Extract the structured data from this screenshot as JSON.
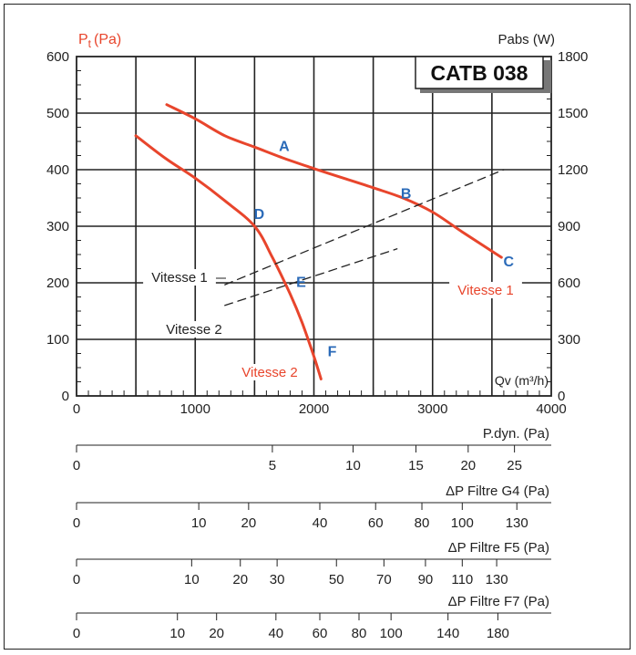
{
  "chart_data": {
    "type": "line",
    "model_label": "CATB 038",
    "ylabel_left_main": "P",
    "ylabel_left_sub": "t",
    "ylabel_left_unit": "(Pa)",
    "ylabel_right": "Pabs (W)",
    "xlabel": "Qv (m³/h)",
    "xlim": [
      0,
      4000
    ],
    "ylim": [
      0,
      600
    ],
    "y2lim": [
      0,
      1800
    ],
    "grid": true,
    "x_ticks": [
      0,
      1000,
      2000,
      3000,
      4000
    ],
    "y_ticks": [
      0,
      100,
      200,
      300,
      400,
      500,
      600
    ],
    "y2_ticks": [
      0,
      300,
      600,
      900,
      1200,
      1500,
      1800
    ],
    "series": [
      {
        "name": "Vitesse 1",
        "axis": "pressure",
        "style": "solid",
        "color": "#e8452c",
        "x": [
          760,
          1000,
          1250,
          1500,
          1750,
          2000,
          2250,
          2500,
          2750,
          3000,
          3250,
          3580
        ],
        "y": [
          515,
          490,
          460,
          440,
          420,
          402,
          385,
          368,
          350,
          325,
          290,
          245
        ]
      },
      {
        "name": "Vitesse 2",
        "axis": "pressure",
        "style": "solid",
        "color": "#e8452c",
        "x": [
          500,
          750,
          1000,
          1250,
          1500,
          1650,
          1800,
          1900,
          2000,
          2060
        ],
        "y": [
          460,
          420,
          385,
          345,
          300,
          245,
          180,
          130,
          70,
          30
        ]
      },
      {
        "name": "Vitesse 1",
        "axis": "power",
        "style": "dashed",
        "color": "#222222",
        "x": [
          1250,
          3600
        ],
        "y": [
          590,
          1200
        ]
      },
      {
        "name": "Vitesse 2",
        "axis": "power",
        "style": "dashed",
        "color": "#222222",
        "x": [
          1250,
          2700
        ],
        "y": [
          480,
          780
        ]
      }
    ],
    "curve_labels": [
      {
        "text": "Vitesse 1",
        "color": "#e8452c"
      },
      {
        "text": "Vitesse 2",
        "color": "#e8452c"
      },
      {
        "text": "Vitesse 1",
        "color": "#222222"
      },
      {
        "text": "Vitesse 2",
        "color": "#222222"
      }
    ],
    "points": [
      {
        "label": "A",
        "x": 1750,
        "y": 420
      },
      {
        "label": "B",
        "x": 2700,
        "y": 357
      },
      {
        "label": "C",
        "x": 3580,
        "y": 245
      },
      {
        "label": "D",
        "x": 1500,
        "y": 300
      },
      {
        "label": "E",
        "x": 1800,
        "y": 180
      },
      {
        "label": "F",
        "x": 2000,
        "y": 70
      }
    ],
    "point_color": "#2a6ab8",
    "scales": [
      {
        "label": "P.dyn. (Pa)",
        "ticks": [
          {
            "text": "0",
            "qv": 0
          },
          {
            "text": "5",
            "qv": 1650
          },
          {
            "text": "10",
            "qv": 2330
          },
          {
            "text": "15",
            "qv": 2860
          },
          {
            "text": "20",
            "qv": 3300
          },
          {
            "text": "25",
            "qv": 3690
          }
        ]
      },
      {
        "label": "ΔP Filtre G4 (Pa)",
        "ticks": [
          {
            "text": "0",
            "qv": 0
          },
          {
            "text": "10",
            "qv": 1030
          },
          {
            "text": "20",
            "qv": 1450
          },
          {
            "text": "40",
            "qv": 2050
          },
          {
            "text": "60",
            "qv": 2520
          },
          {
            "text": "80",
            "qv": 2910
          },
          {
            "text": "100",
            "qv": 3250
          },
          {
            "text": "130",
            "qv": 3710
          }
        ]
      },
      {
        "label": "ΔP Filtre F5 (Pa)",
        "ticks": [
          {
            "text": "0",
            "qv": 0
          },
          {
            "text": "10",
            "qv": 970
          },
          {
            "text": "20",
            "qv": 1380
          },
          {
            "text": "30",
            "qv": 1690
          },
          {
            "text": "50",
            "qv": 2190
          },
          {
            "text": "70",
            "qv": 2590
          },
          {
            "text": "90",
            "qv": 2940
          },
          {
            "text": "110",
            "qv": 3250
          },
          {
            "text": "130",
            "qv": 3540
          }
        ]
      },
      {
        "label": "ΔP Filtre F7 (Pa)",
        "ticks": [
          {
            "text": "0",
            "qv": 0
          },
          {
            "text": "10",
            "qv": 850
          },
          {
            "text": "20",
            "qv": 1180
          },
          {
            "text": "40",
            "qv": 1680
          },
          {
            "text": "60",
            "qv": 2050
          },
          {
            "text": "80",
            "qv": 2380
          },
          {
            "text": "100",
            "qv": 2650
          },
          {
            "text": "140",
            "qv": 3130
          },
          {
            "text": "180",
            "qv": 3550
          }
        ]
      }
    ]
  }
}
